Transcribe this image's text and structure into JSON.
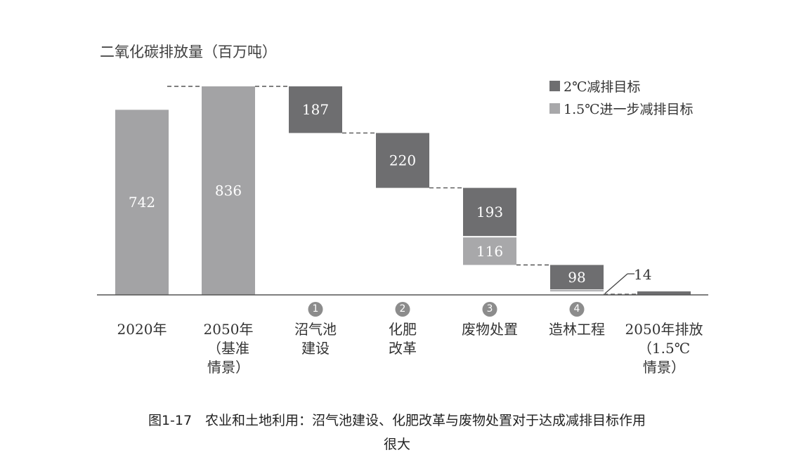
{
  "chart_data": {
    "type": "bar",
    "subtype": "waterfall",
    "ylabel": "二氧化碳排放量（百万吨）",
    "categories": [
      {
        "label": [
          "2020年"
        ],
        "badge": ""
      },
      {
        "label": [
          "2050年",
          "（基准",
          "情景）"
        ],
        "badge": ""
      },
      {
        "label": [
          "沼气池",
          "建设"
        ],
        "badge": "1"
      },
      {
        "label": [
          "化肥",
          "改革"
        ],
        "badge": "2"
      },
      {
        "label": [
          "废物处置"
        ],
        "badge": "3"
      },
      {
        "label": [
          "造林工程"
        ],
        "badge": "4"
      },
      {
        "label": [
          "2050年排放",
          "（1.5℃",
          "情景）"
        ],
        "badge": ""
      }
    ],
    "totals": [
      742,
      836
    ],
    "series": [
      {
        "name": "2℃减排目标",
        "color": "#6e6e70",
        "values": [
          null,
          null,
          187,
          220,
          193,
          98,
          null
        ]
      },
      {
        "name": "1.5℃进一步减排目标",
        "color": "#a8a8aa",
        "values": [
          null,
          null,
          null,
          null,
          116,
          8,
          null
        ]
      }
    ],
    "final_value": 14,
    "final_label": "14",
    "total_color": "#a3a3a5",
    "final_color": "#6e6e70",
    "ylim": [
      0,
      836
    ],
    "grid": false,
    "legend_position": "top-right",
    "labels": {
      "total_0": "742",
      "total_1": "836",
      "step_2_dark": "187",
      "step_3_dark": "220",
      "step_4_dark": "193",
      "step_4_light": "116",
      "step_5_dark": "98"
    }
  },
  "caption": {
    "line1": "图1-17　农业和土地利用：沼气池建设、化肥改革与废物处置对于达成减排目标作用",
    "line2": "很大"
  }
}
